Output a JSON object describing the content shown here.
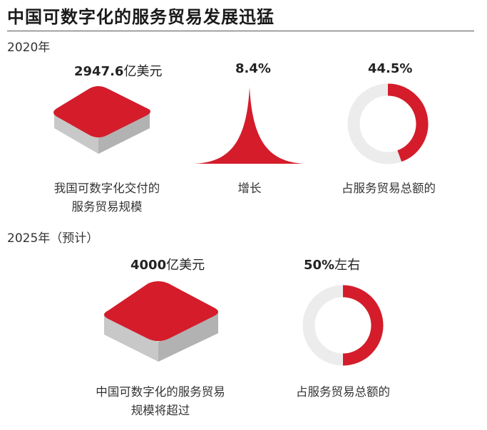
{
  "title": "中国可数字化的服务贸易发展迅猛",
  "colors": {
    "accent": "#d41c2a",
    "ring_track": "#ececec",
    "block_side": "#c8c8c8"
  },
  "chart_data": [
    {
      "type": "infographic",
      "section": "2020年",
      "items": [
        {
          "kind": "value-block",
          "value_bold": "2947.6",
          "value_unit": "亿美元",
          "caption_lines": [
            "我国可数字化交付的",
            "服务贸易规模"
          ]
        },
        {
          "kind": "spike",
          "value": "8.4%",
          "caption_lines": [
            "增长"
          ]
        },
        {
          "kind": "donut",
          "value": "44.5%",
          "share": 0.445,
          "caption_lines": [
            "占服务贸易总额的"
          ]
        }
      ]
    },
    {
      "type": "infographic",
      "section": "2025年（预计）",
      "items": [
        {
          "kind": "value-block",
          "value_bold": "4000",
          "value_unit": "亿美元",
          "caption_lines": [
            "中国可数字化的服务贸易",
            "规模将超过"
          ]
        },
        {
          "kind": "donut",
          "value_bold": "50%",
          "value_unit": "左右",
          "share": 0.5,
          "caption_lines": [
            "占服务贸易总额的"
          ]
        }
      ]
    }
  ]
}
